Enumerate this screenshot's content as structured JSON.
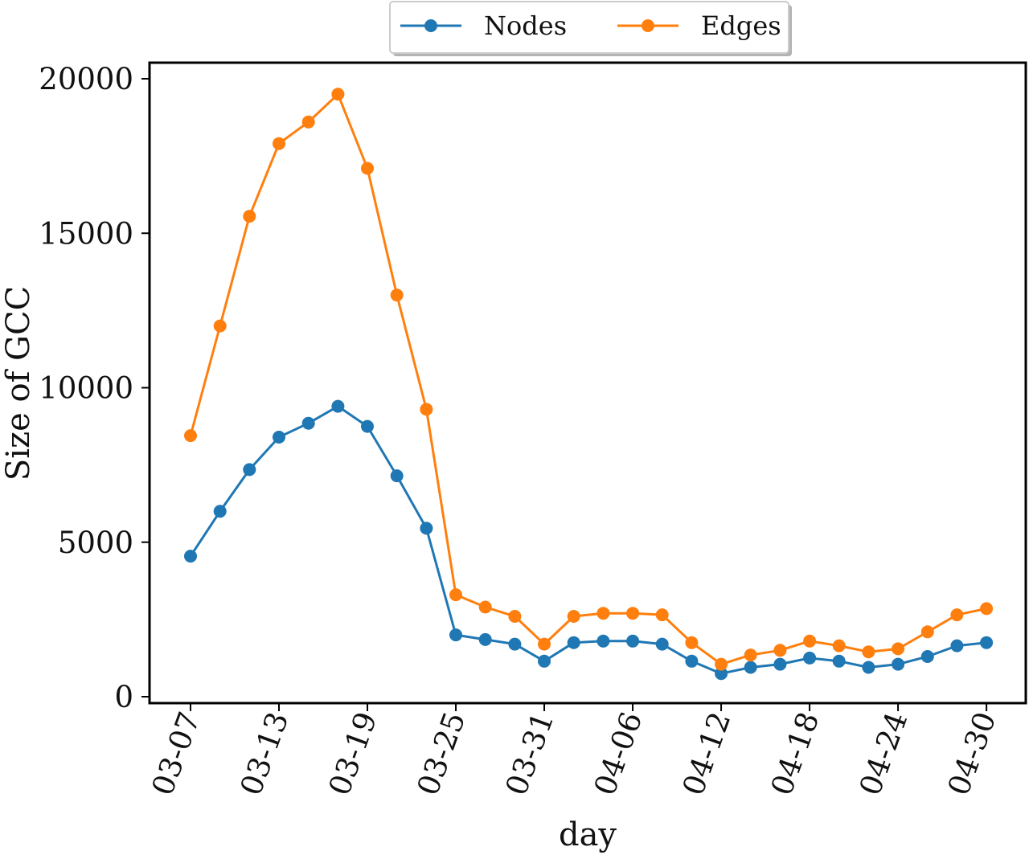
{
  "chart_data": {
    "type": "line",
    "xlabel": "day",
    "ylabel": "Size of GCC",
    "ylim": [
      0,
      20000
    ],
    "yticks": [
      0,
      5000,
      10000,
      15000,
      20000
    ],
    "xtick_labels": [
      "03-07",
      "03-13",
      "03-19",
      "03-25",
      "03-31",
      "04-06",
      "04-12",
      "04-18",
      "04-24",
      "04-30"
    ],
    "x": [
      "03-07",
      "03-09",
      "03-11",
      "03-13",
      "03-15",
      "03-17",
      "03-19",
      "03-21",
      "03-23",
      "03-25",
      "03-27",
      "03-29",
      "03-31",
      "04-02",
      "04-04",
      "04-06",
      "04-08",
      "04-10",
      "04-12",
      "04-14",
      "04-16",
      "04-18",
      "04-20",
      "04-22",
      "04-24",
      "04-26",
      "04-28",
      "04-30"
    ],
    "grid": false,
    "legend_position": "top-center",
    "series": [
      {
        "name": "Nodes",
        "color": "#1f77b4",
        "values": [
          4550,
          6000,
          7350,
          8400,
          8850,
          9400,
          8750,
          7150,
          5450,
          2000,
          1850,
          1700,
          1150,
          1750,
          1800,
          1800,
          1700,
          1150,
          750,
          950,
          1050,
          1250,
          1150,
          950,
          1050,
          1300,
          1650,
          1750
        ]
      },
      {
        "name": "Edges",
        "color": "#ff7f0e",
        "values": [
          8450,
          12000,
          15550,
          17900,
          18600,
          19500,
          17100,
          13000,
          9300,
          3300,
          2900,
          2600,
          1700,
          2600,
          2700,
          2700,
          2650,
          1750,
          1050,
          1350,
          1500,
          1800,
          1650,
          1450,
          1550,
          2100,
          2650,
          2850
        ]
      }
    ]
  }
}
